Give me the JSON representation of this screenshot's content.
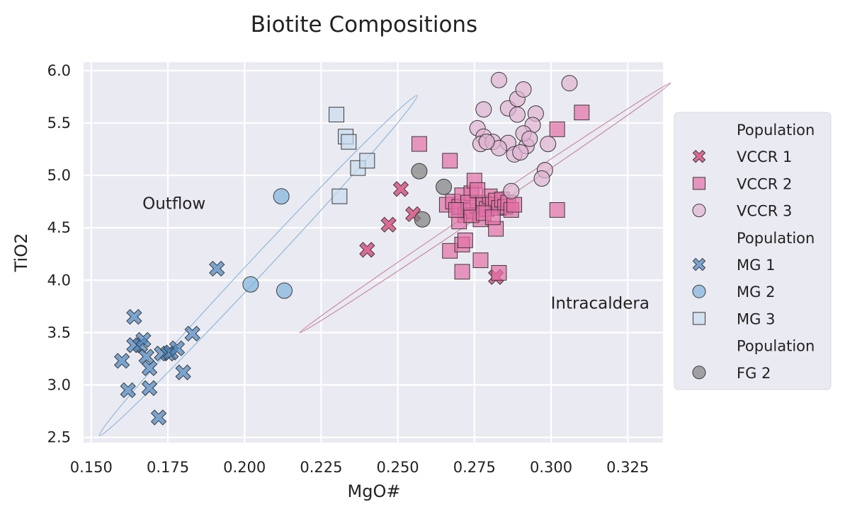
{
  "chart_data": {
    "type": "scatter",
    "title": "Biotite Compositions",
    "xlabel": "MgO#",
    "ylabel": "TiO2",
    "xlim": [
      0.1475,
      0.3365
    ],
    "ylim": [
      2.45,
      6.08
    ],
    "xticks": [
      "0.150",
      "0.175",
      "0.200",
      "0.225",
      "0.250",
      "0.275",
      "0.300",
      "0.325"
    ],
    "yticks": [
      "2.5",
      "3.0",
      "3.5",
      "4.0",
      "4.5",
      "5.0",
      "5.5",
      "6.0"
    ],
    "grid": true,
    "legend_placement": "right, outside plot",
    "annotations": [
      {
        "text": "Outflow",
        "x": 0.177,
        "y": 4.68
      },
      {
        "text": "Intracaldera",
        "x": 0.316,
        "y": 3.73
      }
    ],
    "ellipses": [
      {
        "name": "Outflow",
        "color": "#8fb8d8",
        "cx": 0.2045,
        "cy": 4.14,
        "rx": 0.076,
        "ry": 0.082,
        "angle_deg": -47
      },
      {
        "name": "Intracaldera",
        "color": "#c98aa3",
        "cx": 0.2785,
        "cy": 4.69,
        "rx": 0.073,
        "ry": 0.039,
        "angle_deg": -34
      }
    ],
    "series": [
      {
        "name": "VCCR 1",
        "marker": "x",
        "color": "#d6336c",
        "points": [
          [
            0.24,
            4.29
          ],
          [
            0.247,
            4.53
          ],
          [
            0.251,
            4.87
          ],
          [
            0.255,
            4.63
          ],
          [
            0.282,
            4.03
          ]
        ]
      },
      {
        "name": "VCCR 2",
        "marker": "square",
        "color": "#e46fa7",
        "points": [
          [
            0.257,
            5.3
          ],
          [
            0.267,
            5.14
          ],
          [
            0.283,
            4.07
          ],
          [
            0.31,
            5.6
          ],
          [
            0.302,
            5.44
          ],
          [
            0.302,
            4.67
          ],
          [
            0.267,
            4.28
          ],
          [
            0.271,
            4.08
          ],
          [
            0.271,
            4.34
          ],
          [
            0.272,
            4.38
          ],
          [
            0.277,
            4.19
          ],
          [
            0.282,
            4.49
          ],
          [
            0.266,
            4.72
          ],
          [
            0.268,
            4.75
          ],
          [
            0.27,
            4.7
          ],
          [
            0.271,
            4.81
          ],
          [
            0.272,
            4.62
          ],
          [
            0.273,
            4.66
          ],
          [
            0.274,
            4.83
          ],
          [
            0.275,
            4.95
          ],
          [
            0.276,
            4.71
          ],
          [
            0.277,
            4.58
          ],
          [
            0.278,
            4.74
          ],
          [
            0.279,
            4.68
          ],
          [
            0.28,
            4.8
          ],
          [
            0.281,
            4.72
          ],
          [
            0.282,
            4.76
          ],
          [
            0.283,
            4.69
          ],
          [
            0.284,
            4.77
          ],
          [
            0.285,
            4.7
          ],
          [
            0.286,
            4.74
          ],
          [
            0.287,
            4.67
          ],
          [
            0.288,
            4.72
          ],
          [
            0.27,
            4.56
          ],
          [
            0.274,
            4.62
          ],
          [
            0.278,
            4.64
          ],
          [
            0.273,
            4.74
          ],
          [
            0.276,
            4.86
          ],
          [
            0.269,
            4.67
          ],
          [
            0.281,
            4.6
          ]
        ]
      },
      {
        "name": "VCCR 3",
        "marker": "circle",
        "color": "#dfb3d2",
        "points": [
          [
            0.283,
            5.91
          ],
          [
            0.306,
            5.88
          ],
          [
            0.278,
            5.63
          ],
          [
            0.286,
            5.64
          ],
          [
            0.289,
            5.73
          ],
          [
            0.291,
            5.82
          ],
          [
            0.295,
            5.59
          ],
          [
            0.289,
            5.58
          ],
          [
            0.294,
            5.48
          ],
          [
            0.276,
            5.45
          ],
          [
            0.278,
            5.37
          ],
          [
            0.277,
            5.3
          ],
          [
            0.281,
            5.32
          ],
          [
            0.286,
            5.31
          ],
          [
            0.288,
            5.2
          ],
          [
            0.292,
            5.28
          ],
          [
            0.291,
            5.4
          ],
          [
            0.293,
            5.35
          ],
          [
            0.299,
            5.3
          ],
          [
            0.298,
            5.05
          ],
          [
            0.297,
            4.97
          ],
          [
            0.287,
            4.85
          ],
          [
            0.283,
            5.26
          ],
          [
            0.279,
            5.32
          ],
          [
            0.29,
            5.22
          ]
        ]
      },
      {
        "name": "MG 1",
        "marker": "x",
        "color": "#4a86c2",
        "points": [
          [
            0.16,
            3.23
          ],
          [
            0.162,
            2.95
          ],
          [
            0.164,
            3.38
          ],
          [
            0.164,
            3.65
          ],
          [
            0.166,
            3.38
          ],
          [
            0.167,
            3.43
          ],
          [
            0.168,
            3.27
          ],
          [
            0.169,
            3.16
          ],
          [
            0.169,
            2.97
          ],
          [
            0.172,
            2.69
          ],
          [
            0.173,
            3.3
          ],
          [
            0.175,
            3.3
          ],
          [
            0.176,
            3.31
          ],
          [
            0.178,
            3.35
          ],
          [
            0.18,
            3.12
          ],
          [
            0.183,
            3.49
          ],
          [
            0.191,
            4.11
          ]
        ]
      },
      {
        "name": "MG 2",
        "marker": "circle",
        "color": "#7fb3dd",
        "points": [
          [
            0.202,
            3.96
          ],
          [
            0.212,
            4.8
          ],
          [
            0.213,
            3.9
          ]
        ]
      },
      {
        "name": "MG 3",
        "marker": "square",
        "color": "#c8dcee",
        "points": [
          [
            0.23,
            5.58
          ],
          [
            0.231,
            4.8
          ],
          [
            0.233,
            5.37
          ],
          [
            0.234,
            5.32
          ],
          [
            0.237,
            5.07
          ],
          [
            0.24,
            5.14
          ]
        ]
      },
      {
        "name": "FG 2",
        "marker": "circle",
        "color": "#808080",
        "points": [
          [
            0.257,
            5.04
          ],
          [
            0.258,
            4.58
          ],
          [
            0.265,
            4.89
          ]
        ]
      }
    ],
    "legend": [
      {
        "kind": "header",
        "label": "Population"
      },
      {
        "kind": "item",
        "label": "VCCR 1",
        "marker": "x",
        "color": "#d6336c"
      },
      {
        "kind": "item",
        "label": "VCCR 2",
        "marker": "square",
        "color": "#e46fa7"
      },
      {
        "kind": "item",
        "label": "VCCR 3",
        "marker": "circle",
        "color": "#dfb3d2"
      },
      {
        "kind": "header",
        "label": "Population"
      },
      {
        "kind": "item",
        "label": "MG 1",
        "marker": "x",
        "color": "#4a86c2"
      },
      {
        "kind": "item",
        "label": "MG 2",
        "marker": "circle",
        "color": "#7fb3dd"
      },
      {
        "kind": "item",
        "label": "MG 3",
        "marker": "square",
        "color": "#c8dcee"
      },
      {
        "kind": "header",
        "label": "Population"
      },
      {
        "kind": "item",
        "label": "FG 2",
        "marker": "circle",
        "color": "#808080"
      }
    ],
    "colors": {
      "plot_background": "#eaeaf2",
      "grid": "#ffffff",
      "legend_background": "#eaeaf2",
      "marker_edge": "#3a3a3a"
    }
  }
}
